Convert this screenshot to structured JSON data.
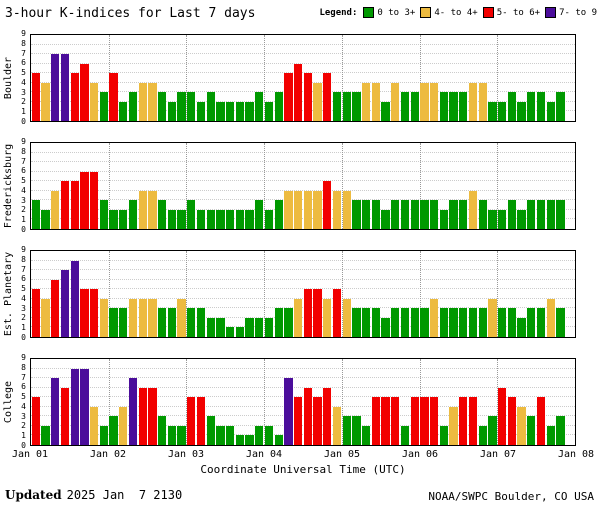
{
  "header": {
    "legend_label": "Legend:",
    "legend": [
      {
        "label": "0 to 3+",
        "color": "#009900"
      },
      {
        "label": "4- to 4+",
        "color": "#EDBB40"
      },
      {
        "label": "5- to 6+",
        "color": "#F20000"
      },
      {
        "label": "7- to 9",
        "color": "#4B0D9B"
      }
    ]
  },
  "chart_data": {
    "type": "bar",
    "title": "3-hour K-indices for Last 7 days",
    "xlabel": "Coordinate Universal Time (UTC)",
    "x_tick_labels": [
      "Jan 01",
      "Jan 02",
      "Jan 03",
      "Jan 04",
      "Jan 05",
      "Jan 06",
      "Jan 07",
      "Jan 08"
    ],
    "ylim": [
      0,
      9
    ],
    "y_ticks": [
      0,
      1,
      2,
      3,
      4,
      5,
      6,
      7,
      8,
      9
    ],
    "days": 7,
    "bars_per_day": 8,
    "color_rule": "K<4 green, K=4 yellow, K 5-6 red, K>=7 purple",
    "series": [
      {
        "name": "Boulder",
        "values": [
          5,
          4,
          7,
          7,
          5,
          6,
          4,
          3,
          5,
          2,
          3,
          4,
          4,
          3,
          2,
          3,
          3,
          2,
          3,
          2,
          2,
          2,
          2,
          3,
          2,
          3,
          5,
          6,
          5,
          4,
          5,
          3,
          3,
          3,
          4,
          4,
          2,
          4,
          3,
          3,
          4,
          4,
          3,
          3,
          3,
          4,
          4,
          2,
          2,
          3,
          2,
          3,
          3,
          2,
          3
        ]
      },
      {
        "name": "Fredericksburg",
        "values": [
          3,
          2,
          4,
          5,
          5,
          6,
          6,
          3,
          2,
          2,
          3,
          4,
          4,
          3,
          2,
          2,
          3,
          2,
          2,
          2,
          2,
          2,
          2,
          3,
          2,
          3,
          4,
          4,
          4,
          4,
          5,
          4,
          4,
          3,
          3,
          3,
          2,
          3,
          3,
          3,
          3,
          3,
          2,
          3,
          3,
          4,
          3,
          2,
          2,
          3,
          2,
          3,
          3,
          3,
          3
        ]
      },
      {
        "name": "Est. Planetary",
        "values": [
          5,
          4,
          6,
          7,
          8,
          5,
          5,
          4,
          3,
          3,
          4,
          4,
          4,
          3,
          3,
          4,
          3,
          3,
          2,
          2,
          1,
          1,
          2,
          2,
          2,
          3,
          3,
          4,
          5,
          5,
          4,
          5,
          4,
          3,
          3,
          3,
          2,
          3,
          3,
          3,
          3,
          4,
          3,
          3,
          3,
          3,
          3,
          4,
          3,
          3,
          2,
          3,
          3,
          4,
          3
        ]
      },
      {
        "name": "College",
        "values": [
          5,
          2,
          7,
          6,
          8,
          8,
          4,
          2,
          3,
          4,
          7,
          6,
          6,
          3,
          2,
          2,
          5,
          5,
          3,
          2,
          2,
          1,
          1,
          2,
          2,
          1,
          7,
          5,
          6,
          5,
          6,
          4,
          3,
          3,
          2,
          5,
          5,
          5,
          2,
          5,
          5,
          5,
          2,
          4,
          5,
          5,
          2,
          3,
          6,
          5,
          4,
          3,
          5,
          2,
          3
        ]
      }
    ]
  },
  "footer": {
    "updated_label": "Updated",
    "updated_value": "2025 Jan  7 2130",
    "credit": "NOAA/SWPC Boulder, CO USA"
  }
}
